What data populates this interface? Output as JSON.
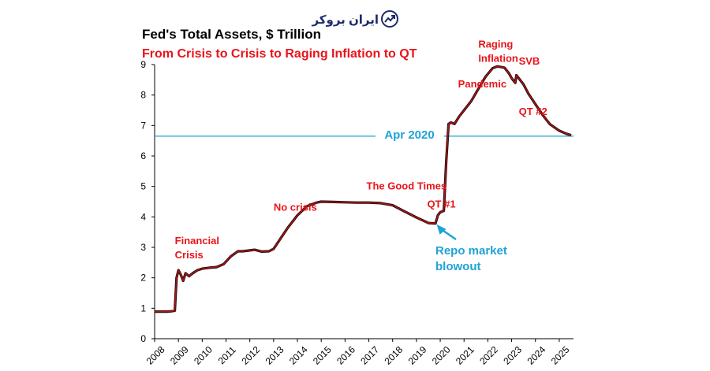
{
  "logo": {
    "text": "ایران بروکر",
    "icon": "trend-arrow-icon",
    "color": "#1b2a6b"
  },
  "chart_data": {
    "type": "line",
    "title": "Fed's Total Assets, $ Trillion",
    "subtitle": "From Crisis to Crisis to Raging Inflation to QT",
    "xlabel": "",
    "ylabel": "",
    "xlim": [
      2008,
      2025.6
    ],
    "ylim": [
      0,
      9
    ],
    "x_ticks": [
      2008,
      2009,
      2010,
      2011,
      2012,
      2013,
      2014,
      2015,
      2016,
      2017,
      2018,
      2019,
      2020,
      2021,
      2022,
      2023,
      2024,
      2025
    ],
    "y_ticks": [
      0,
      1,
      2,
      3,
      4,
      5,
      6,
      7,
      8,
      9
    ],
    "series": [
      {
        "name": "Fed's Total Assets",
        "color": "#b01010",
        "x": [
          2008.0,
          2008.5,
          2008.7,
          2008.85,
          2008.92,
          2009.0,
          2009.1,
          2009.2,
          2009.3,
          2009.45,
          2009.6,
          2009.8,
          2010.0,
          2010.3,
          2010.6,
          2010.9,
          2011.2,
          2011.5,
          2011.7,
          2012.0,
          2012.2,
          2012.5,
          2012.8,
          2013.0,
          2013.3,
          2013.6,
          2014.0,
          2014.4,
          2014.8,
          2015.0,
          2015.5,
          2016.0,
          2016.5,
          2017.0,
          2017.5,
          2018.0,
          2018.5,
          2019.0,
          2019.5,
          2019.8,
          2019.9,
          2020.0,
          2020.15,
          2020.25,
          2020.35,
          2020.45,
          2020.6,
          2020.8,
          2021.0,
          2021.3,
          2021.6,
          2021.9,
          2022.2,
          2022.4,
          2022.7,
          2022.9,
          2023.0,
          2023.15,
          2023.2,
          2023.3,
          2023.5,
          2023.7,
          2024.0,
          2024.3,
          2024.6,
          2025.0,
          2025.3,
          2025.5
        ],
        "values": [
          0.89,
          0.89,
          0.9,
          0.92,
          2.0,
          2.25,
          2.1,
          1.9,
          2.15,
          2.05,
          2.15,
          2.25,
          2.3,
          2.33,
          2.35,
          2.45,
          2.7,
          2.87,
          2.87,
          2.9,
          2.92,
          2.86,
          2.87,
          2.95,
          3.3,
          3.65,
          4.05,
          4.35,
          4.47,
          4.5,
          4.49,
          4.48,
          4.47,
          4.47,
          4.45,
          4.38,
          4.18,
          3.98,
          3.8,
          3.78,
          4.05,
          4.15,
          4.2,
          5.8,
          7.05,
          7.1,
          7.05,
          7.3,
          7.5,
          7.8,
          8.2,
          8.6,
          8.88,
          8.94,
          8.9,
          8.7,
          8.55,
          8.4,
          8.65,
          8.55,
          8.35,
          8.05,
          7.7,
          7.35,
          7.05,
          6.83,
          6.73,
          6.68
        ]
      }
    ],
    "reference_line": {
      "label": "Apr 2020",
      "value": 6.65,
      "color": "#1fa3d6"
    },
    "annotations": [
      {
        "text": [
          "Financial",
          "Crisis"
        ],
        "x": 2008.85,
        "y": 3.1
      },
      {
        "text": [
          "No crisis"
        ],
        "x": 2013.0,
        "y": 4.2
      },
      {
        "text": [
          "The Good Times"
        ],
        "x": 2016.9,
        "y": 4.9
      },
      {
        "text": [
          "QT #1"
        ],
        "x": 2019.45,
        "y": 4.3
      },
      {
        "text": [
          "Pandemic"
        ],
        "x": 2020.75,
        "y": 8.25
      },
      {
        "text": [
          "Raging",
          "Inflation"
        ],
        "x": 2021.6,
        "y": 9.55
      },
      {
        "text": [
          "SVB"
        ],
        "x": 2023.3,
        "y": 9.0
      },
      {
        "text": [
          "QT #2"
        ],
        "x": 2023.3,
        "y": 7.35
      }
    ],
    "callout": {
      "text": [
        "Repo market",
        "blowout"
      ],
      "points_to": [
        2019.85,
        3.78
      ]
    },
    "grid": false
  }
}
